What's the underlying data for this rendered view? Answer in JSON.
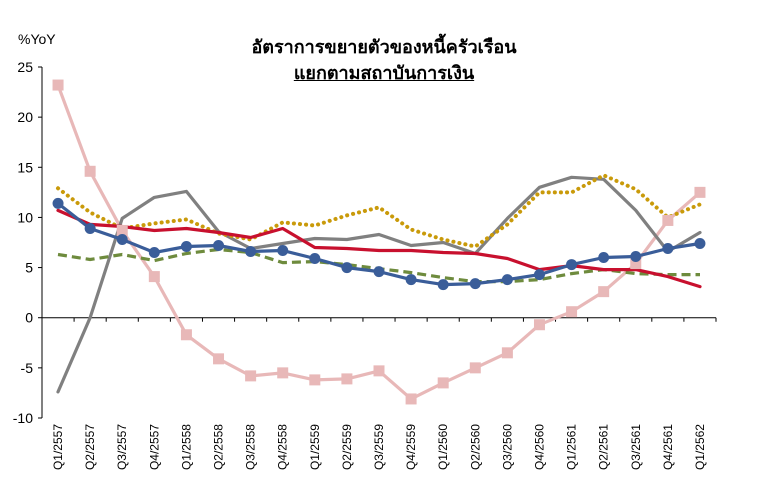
{
  "chart_data": {
    "type": "line",
    "title": "อัตราการขยายตัวของหนี้ครัวเรือน",
    "subtitle": "แยกตามสถาบันการเงิน",
    "ylabel": "%YoY",
    "ylim": [
      -10,
      25
    ],
    "yticks": [
      -10,
      -5,
      0,
      5,
      10,
      15,
      20,
      25
    ],
    "categories": [
      "Q1/2557",
      "Q2/2557",
      "Q3/2557",
      "Q4/2557",
      "Q1/2558",
      "Q2/2558",
      "Q3/2558",
      "Q4/2558",
      "Q1/2559",
      "Q2/2559",
      "Q3/2559",
      "Q4/2559",
      "Q1/2560",
      "Q2/2560",
      "Q3/2560",
      "Q4/2560",
      "Q1/2561",
      "Q2/2561",
      "Q3/2561",
      "Q4/2561",
      "Q1/2562"
    ],
    "grid": false,
    "legend": "none",
    "series": [
      {
        "color": "#e8b8b8",
        "style": "solid",
        "marker": "square",
        "values": [
          23.2,
          14.6,
          8.7,
          4.1,
          -1.7,
          -4.1,
          -5.8,
          -5.5,
          -6.2,
          -6.1,
          -5.3,
          -8.1,
          -6.5,
          -5.0,
          -3.5,
          -0.7,
          0.6,
          2.6,
          5.4,
          9.7,
          12.5
        ]
      },
      {
        "color": "#808080",
        "style": "solid",
        "marker": "none",
        "values": [
          -7.4,
          0.0,
          9.9,
          12.0,
          12.6,
          8.6,
          6.9,
          7.4,
          7.9,
          7.8,
          8.3,
          7.2,
          7.5,
          6.4,
          9.9,
          13.0,
          14.0,
          13.8,
          10.7,
          6.6,
          8.5
        ]
      },
      {
        "color": "#c99a0a",
        "style": "dotted",
        "marker": "none",
        "values": [
          12.9,
          10.5,
          8.9,
          9.4,
          9.8,
          8.4,
          7.8,
          9.5,
          9.2,
          10.2,
          11.0,
          8.8,
          7.8,
          7.1,
          9.3,
          12.5,
          12.5,
          14.2,
          12.8,
          10.0,
          11.3
        ]
      },
      {
        "color": "#6e8b3d",
        "style": "dashed",
        "marker": "none",
        "values": [
          6.3,
          5.8,
          6.3,
          5.7,
          6.4,
          6.8,
          6.5,
          5.5,
          5.6,
          5.3,
          4.9,
          4.5,
          4.0,
          3.6,
          3.6,
          3.8,
          4.4,
          4.8,
          4.4,
          4.3,
          4.3
        ]
      },
      {
        "color": "#c8102e",
        "style": "solid",
        "marker": "none",
        "values": [
          10.7,
          9.3,
          9.1,
          8.7,
          8.9,
          8.5,
          8.0,
          8.9,
          7.0,
          6.9,
          6.7,
          6.7,
          6.5,
          6.4,
          5.9,
          4.8,
          5.2,
          4.8,
          4.8,
          4.1,
          3.1
        ]
      },
      {
        "color": "#3a5d99",
        "style": "solid",
        "marker": "circle",
        "values": [
          11.4,
          8.9,
          7.8,
          6.5,
          7.1,
          7.2,
          6.6,
          6.7,
          5.9,
          5.0,
          4.6,
          3.8,
          3.3,
          3.4,
          3.8,
          4.3,
          5.3,
          6.0,
          6.1,
          6.9,
          7.4
        ]
      }
    ]
  }
}
